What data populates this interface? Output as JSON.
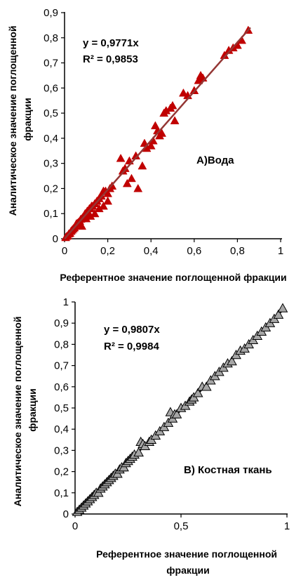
{
  "chart_data": [
    {
      "type": "scatter",
      "title": "А)Вода",
      "xlabel": "Референтное значение поглощенной фракции",
      "ylabel": [
        "Аналитическое значение поглощенной",
        "фракции"
      ],
      "xlim": [
        0,
        1
      ],
      "ylim": [
        0,
        0.9
      ],
      "x_ticks": [
        "0",
        "0,2",
        "0,4",
        "0,6",
        "0,8",
        "1"
      ],
      "y_ticks": [
        "0",
        "0,1",
        "0,2",
        "0,3",
        "0,4",
        "0,5",
        "0,6",
        "0,7",
        "0,8",
        "0,9"
      ],
      "grid": false,
      "equation": "y = 0,9771x",
      "r2": "R² = 0,9853",
      "trendline_slope": 0.9771,
      "marker": "triangle",
      "marker_color": "#c00000",
      "trend_color": "#943634",
      "series": [
        {
          "x": [
            0.005,
            0.01,
            0.015,
            0.02,
            0.025,
            0.03,
            0.035,
            0.04,
            0.045,
            0.05,
            0.055,
            0.06,
            0.065,
            0.07,
            0.075,
            0.08,
            0.085,
            0.09,
            0.095,
            0.1,
            0.105,
            0.11,
            0.115,
            0.12,
            0.125,
            0.13,
            0.14,
            0.15,
            0.16,
            0.17,
            0.18,
            0.19,
            0.2,
            0.21,
            0.22,
            0.08,
            0.1,
            0.12,
            0.14,
            0.16,
            0.18,
            0.2,
            0.26,
            0.27,
            0.28,
            0.29,
            0.3,
            0.31,
            0.33,
            0.34,
            0.36,
            0.37,
            0.38,
            0.4,
            0.41,
            0.42,
            0.43,
            0.44,
            0.45,
            0.46,
            0.47,
            0.49,
            0.5,
            0.51,
            0.55,
            0.57,
            0.6,
            0.62,
            0.63,
            0.64,
            0.74,
            0.76,
            0.78,
            0.8,
            0.82,
            0.85
          ],
          "y": [
            0.005,
            0.01,
            0.012,
            0.02,
            0.022,
            0.03,
            0.035,
            0.04,
            0.044,
            0.05,
            0.06,
            0.062,
            0.066,
            0.07,
            0.078,
            0.08,
            0.086,
            0.09,
            0.1,
            0.1,
            0.11,
            0.1,
            0.12,
            0.12,
            0.13,
            0.13,
            0.14,
            0.15,
            0.16,
            0.17,
            0.19,
            0.19,
            0.18,
            0.2,
            0.21,
            0.05,
            0.08,
            0.09,
            0.1,
            0.12,
            0.13,
            0.15,
            0.32,
            0.27,
            0.28,
            0.22,
            0.31,
            0.24,
            0.33,
            0.2,
            0.29,
            0.38,
            0.36,
            0.37,
            0.39,
            0.45,
            0.43,
            0.41,
            0.42,
            0.5,
            0.51,
            0.52,
            0.53,
            0.47,
            0.58,
            0.57,
            0.59,
            0.63,
            0.65,
            0.64,
            0.73,
            0.75,
            0.76,
            0.77,
            0.79,
            0.83
          ]
        }
      ]
    },
    {
      "type": "scatter",
      "title": "В) Костная ткань",
      "xlabel": [
        "Референтное значение поглощенной",
        "фракции"
      ],
      "ylabel": [
        "Аналитическое значение поглощенной",
        "фракции"
      ],
      "xlim": [
        0,
        1
      ],
      "ylim": [
        0,
        1
      ],
      "x_ticks": [
        "0",
        "0,5",
        "1"
      ],
      "y_ticks": [
        "0",
        "0,1",
        "0,2",
        "0,3",
        "0,4",
        "0,5",
        "0,6",
        "0,7",
        "0,8",
        "0,9",
        "1"
      ],
      "grid": false,
      "equation": "y = 0,9807x",
      "r2": "R² = 0,9984",
      "trendline_slope": 0.9807,
      "marker": "triangle",
      "marker_color": "#a6a6a6",
      "trend_color": "#000000",
      "series": [
        {
          "x": [
            0.01,
            0.02,
            0.03,
            0.04,
            0.05,
            0.06,
            0.07,
            0.08,
            0.09,
            0.1,
            0.11,
            0.12,
            0.13,
            0.14,
            0.15,
            0.16,
            0.17,
            0.18,
            0.19,
            0.2,
            0.21,
            0.22,
            0.23,
            0.24,
            0.25,
            0.26,
            0.27,
            0.28,
            0.3,
            0.31,
            0.32,
            0.33,
            0.35,
            0.36,
            0.38,
            0.4,
            0.42,
            0.44,
            0.45,
            0.46,
            0.47,
            0.48,
            0.5,
            0.52,
            0.54,
            0.55,
            0.56,
            0.58,
            0.6,
            0.62,
            0.64,
            0.66,
            0.68,
            0.7,
            0.72,
            0.74,
            0.76,
            0.78,
            0.8,
            0.82,
            0.84,
            0.86,
            0.88,
            0.9,
            0.92,
            0.94,
            0.96,
            0.98
          ],
          "y": [
            0.01,
            0.02,
            0.03,
            0.04,
            0.05,
            0.06,
            0.07,
            0.08,
            0.09,
            0.1,
            0.1,
            0.12,
            0.13,
            0.14,
            0.15,
            0.16,
            0.17,
            0.18,
            0.19,
            0.19,
            0.21,
            0.22,
            0.22,
            0.24,
            0.25,
            0.26,
            0.27,
            0.28,
            0.29,
            0.34,
            0.33,
            0.32,
            0.34,
            0.35,
            0.37,
            0.39,
            0.41,
            0.43,
            0.48,
            0.45,
            0.47,
            0.47,
            0.5,
            0.51,
            0.53,
            0.54,
            0.55,
            0.57,
            0.6,
            0.6,
            0.63,
            0.65,
            0.67,
            0.69,
            0.71,
            0.72,
            0.75,
            0.77,
            0.78,
            0.8,
            0.82,
            0.84,
            0.86,
            0.88,
            0.9,
            0.92,
            0.94,
            0.97
          ]
        }
      ]
    }
  ]
}
